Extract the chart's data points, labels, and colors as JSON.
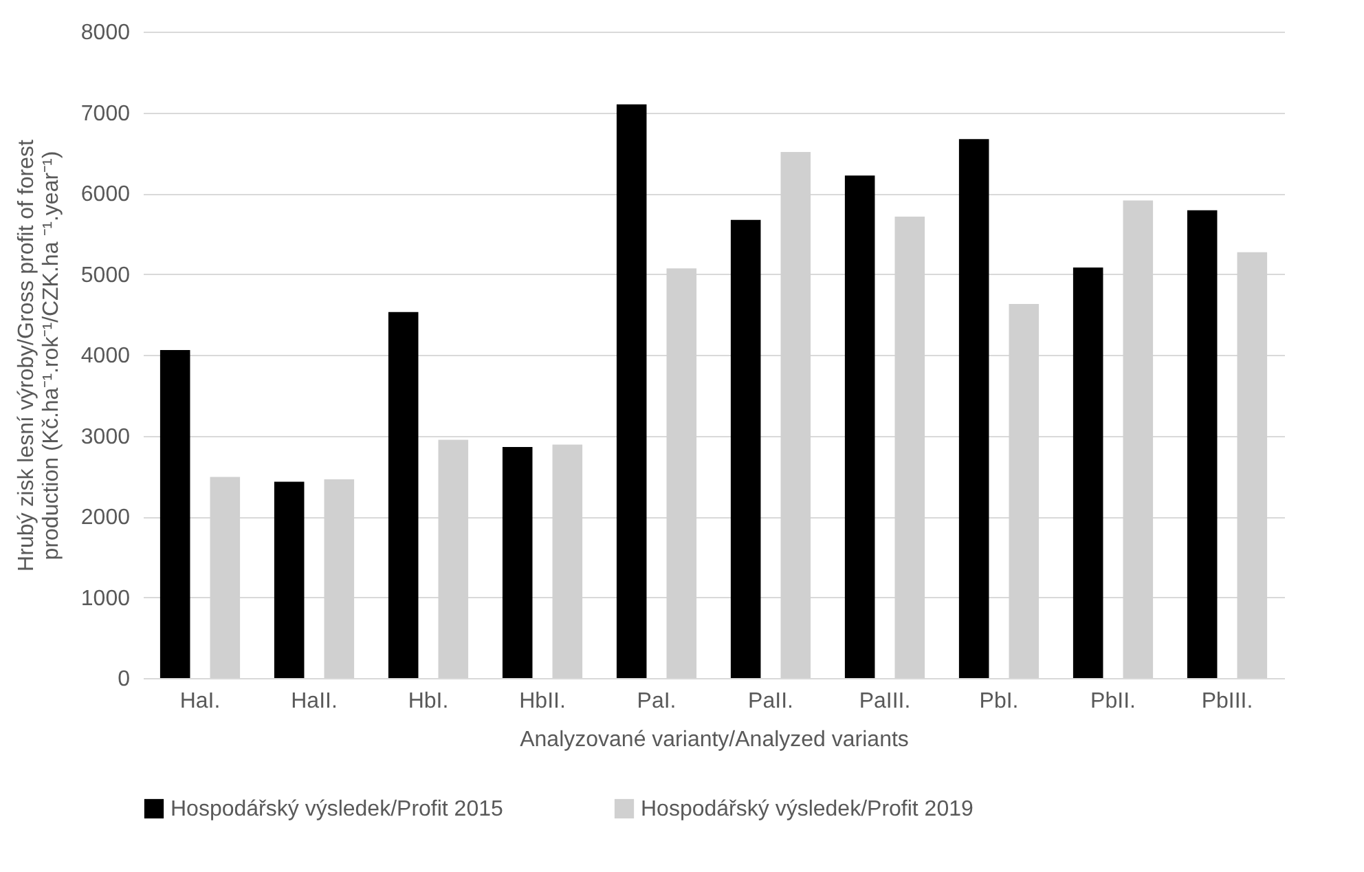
{
  "chart_data": {
    "type": "bar",
    "xlabel": "Analyzované varianty/Analyzed variants",
    "ylabel": "Hrubý zisk lesní výroby/Gross profit of forest\nproduction (Kč.ha⁻¹.rok⁻¹/CZK.ha ⁻¹.year⁻¹)",
    "categories": [
      "HaI.",
      "HaII.",
      "HbI.",
      "HbII.",
      "PaI.",
      "PaII.",
      "PaIII.",
      "PbI.",
      "PbII.",
      "PbIII."
    ],
    "series": [
      {
        "name": "Hospodářský výsledek/Profit 2015",
        "color": "#000000",
        "values": [
          4060,
          2430,
          4530,
          2860,
          7100,
          5670,
          6220,
          6670,
          5080,
          5790
        ]
      },
      {
        "name": "Hospodářský výsledek/Profit 2019",
        "color": "#d0d0d0",
        "values": [
          2490,
          2460,
          2950,
          2890,
          5070,
          6510,
          5710,
          4630,
          5910,
          5270
        ]
      }
    ],
    "ylim": [
      0,
      8000
    ],
    "yticks": [
      0,
      1000,
      2000,
      3000,
      4000,
      5000,
      6000,
      7000,
      8000
    ],
    "grid": "y",
    "legend": "bottom"
  }
}
